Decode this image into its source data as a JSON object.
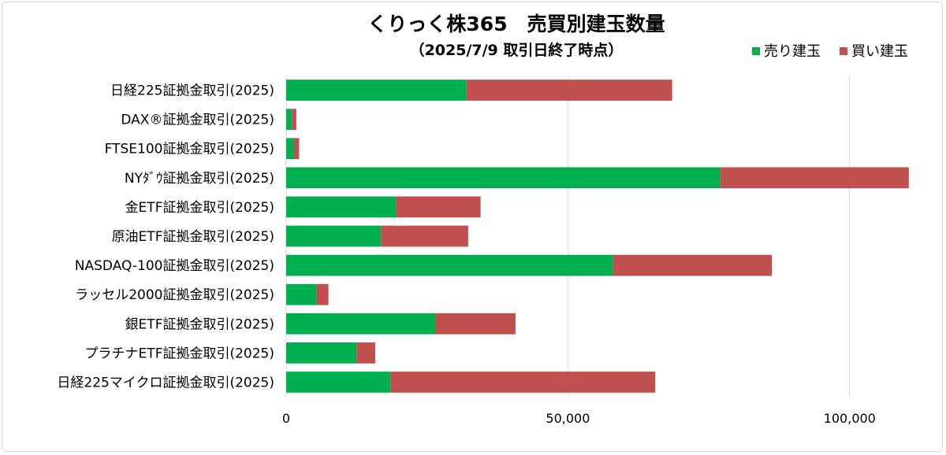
{
  "chart_data": {
    "type": "bar",
    "orientation": "horizontal",
    "stacked": true,
    "title": "くりっく株365　売買別建玉数量",
    "subtitle": "（2025/7/9 取引日終了時点）",
    "categories": [
      "日経225証拠金取引(2025)",
      "DAX®証拠金取引(2025)",
      "FTSE100証拠金取引(2025)",
      "NYﾀﾞｳ証拠金取引(2025)",
      "金ETF証拠金取引(2025)",
      "原油ETF証拠金取引(2025)",
      "NASDAQ-100証拠金取引(2025)",
      "ラッセル2000証拠金取引(2025)",
      "銀ETF証拠金取引(2025)",
      "プラチナETF証拠金取引(2025)",
      "日経225マイクロ証拠金取引(2025)"
    ],
    "series": [
      {
        "name": "売り建玉",
        "color": "#00b050",
        "values": [
          32000,
          1000,
          1400,
          77000,
          19500,
          16800,
          58000,
          5400,
          26500,
          12500,
          18500
        ]
      },
      {
        "name": "買い建玉",
        "color": "#c0504d",
        "values": [
          36500,
          800,
          900,
          33500,
          15000,
          15500,
          28200,
          2100,
          14200,
          3300,
          47000
        ]
      }
    ],
    "xlim": [
      0,
      115000
    ],
    "xticks": [
      0,
      50000,
      100000
    ],
    "xtick_labels": [
      "0",
      "50,000",
      "100,000"
    ],
    "grid": "vertical",
    "legend": "top-right"
  }
}
